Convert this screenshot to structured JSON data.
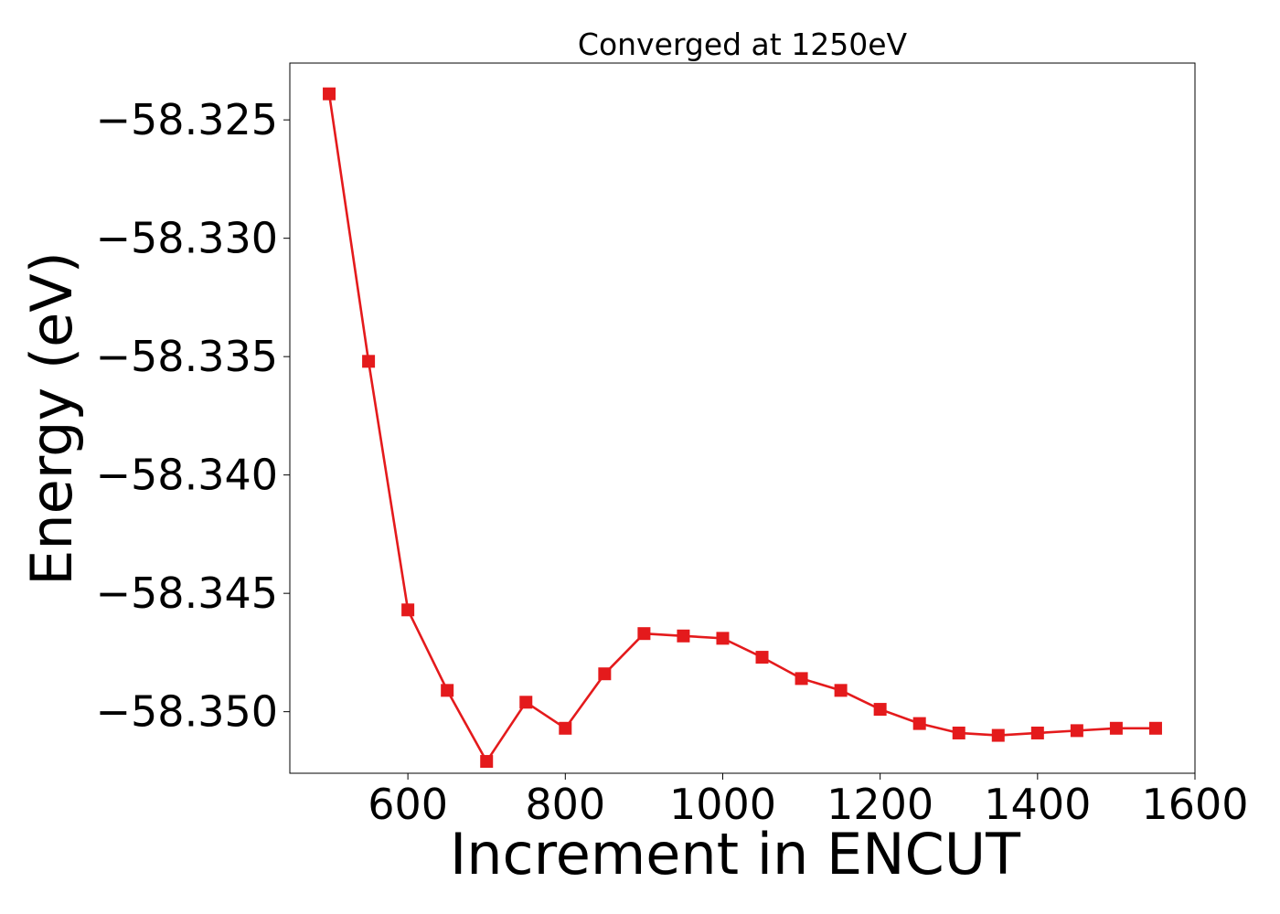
{
  "chart_data": {
    "type": "line",
    "title": "Converged at 1250eV",
    "xlabel": "Increment in ENCUT",
    "ylabel": "Energy (eV)",
    "xlim": [
      450,
      1600
    ],
    "ylim": [
      -58.3526,
      -58.3226
    ],
    "x_ticks": [
      600,
      800,
      1000,
      1200,
      1400,
      1600
    ],
    "x_tick_labels": [
      "600",
      "800",
      "1000",
      "1200",
      "1400",
      "1600"
    ],
    "y_ticks": [
      -58.325,
      -58.33,
      -58.335,
      -58.34,
      -58.345,
      -58.35
    ],
    "y_tick_labels": [
      "−58.325",
      "−58.330",
      "−58.335",
      "−58.340",
      "−58.345",
      "−58.350"
    ],
    "grid": false,
    "series": [
      {
        "color": "#e41a1c",
        "marker": "square",
        "x": [
          500,
          550,
          600,
          650,
          700,
          750,
          800,
          850,
          900,
          950,
          1000,
          1050,
          1100,
          1150,
          1200,
          1250,
          1300,
          1350,
          1400,
          1450,
          1500,
          1550
        ],
        "y": [
          -58.3239,
          -58.3352,
          -58.3457,
          -58.3491,
          -58.3521,
          -58.3496,
          -58.3507,
          -58.3484,
          -58.3467,
          -58.3468,
          -58.3469,
          -58.3477,
          -58.3486,
          -58.3491,
          -58.3499,
          -58.3505,
          -58.3509,
          -58.351,
          -58.3509,
          -58.3508,
          -58.3507,
          -58.3507
        ]
      }
    ]
  }
}
